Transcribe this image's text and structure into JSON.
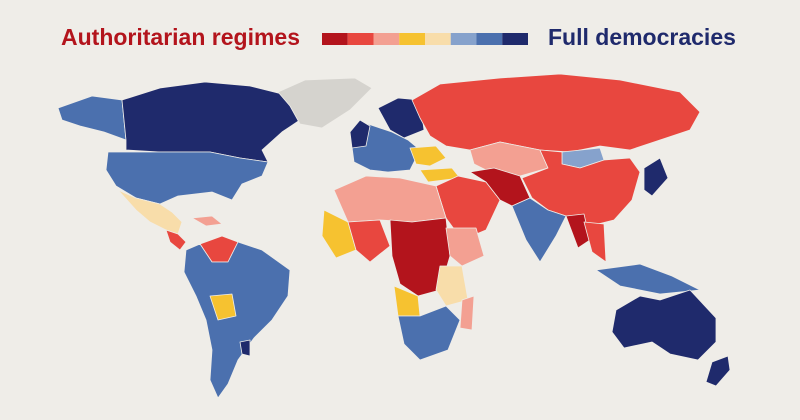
{
  "legend": {
    "left_label": "Authoritarian regimes",
    "right_label": "Full democracies",
    "colors": [
      "#b3141c",
      "#e8473f",
      "#f3a092",
      "#f6c230",
      "#f8ddaa",
      "#86a2cc",
      "#4b70ae",
      "#1f2a6c"
    ]
  },
  "map": {
    "background": "#efede8",
    "no_data_color": "#d5d3ce",
    "left_label_color": "#b3141c",
    "right_label_color": "#1f2a6c"
  }
}
